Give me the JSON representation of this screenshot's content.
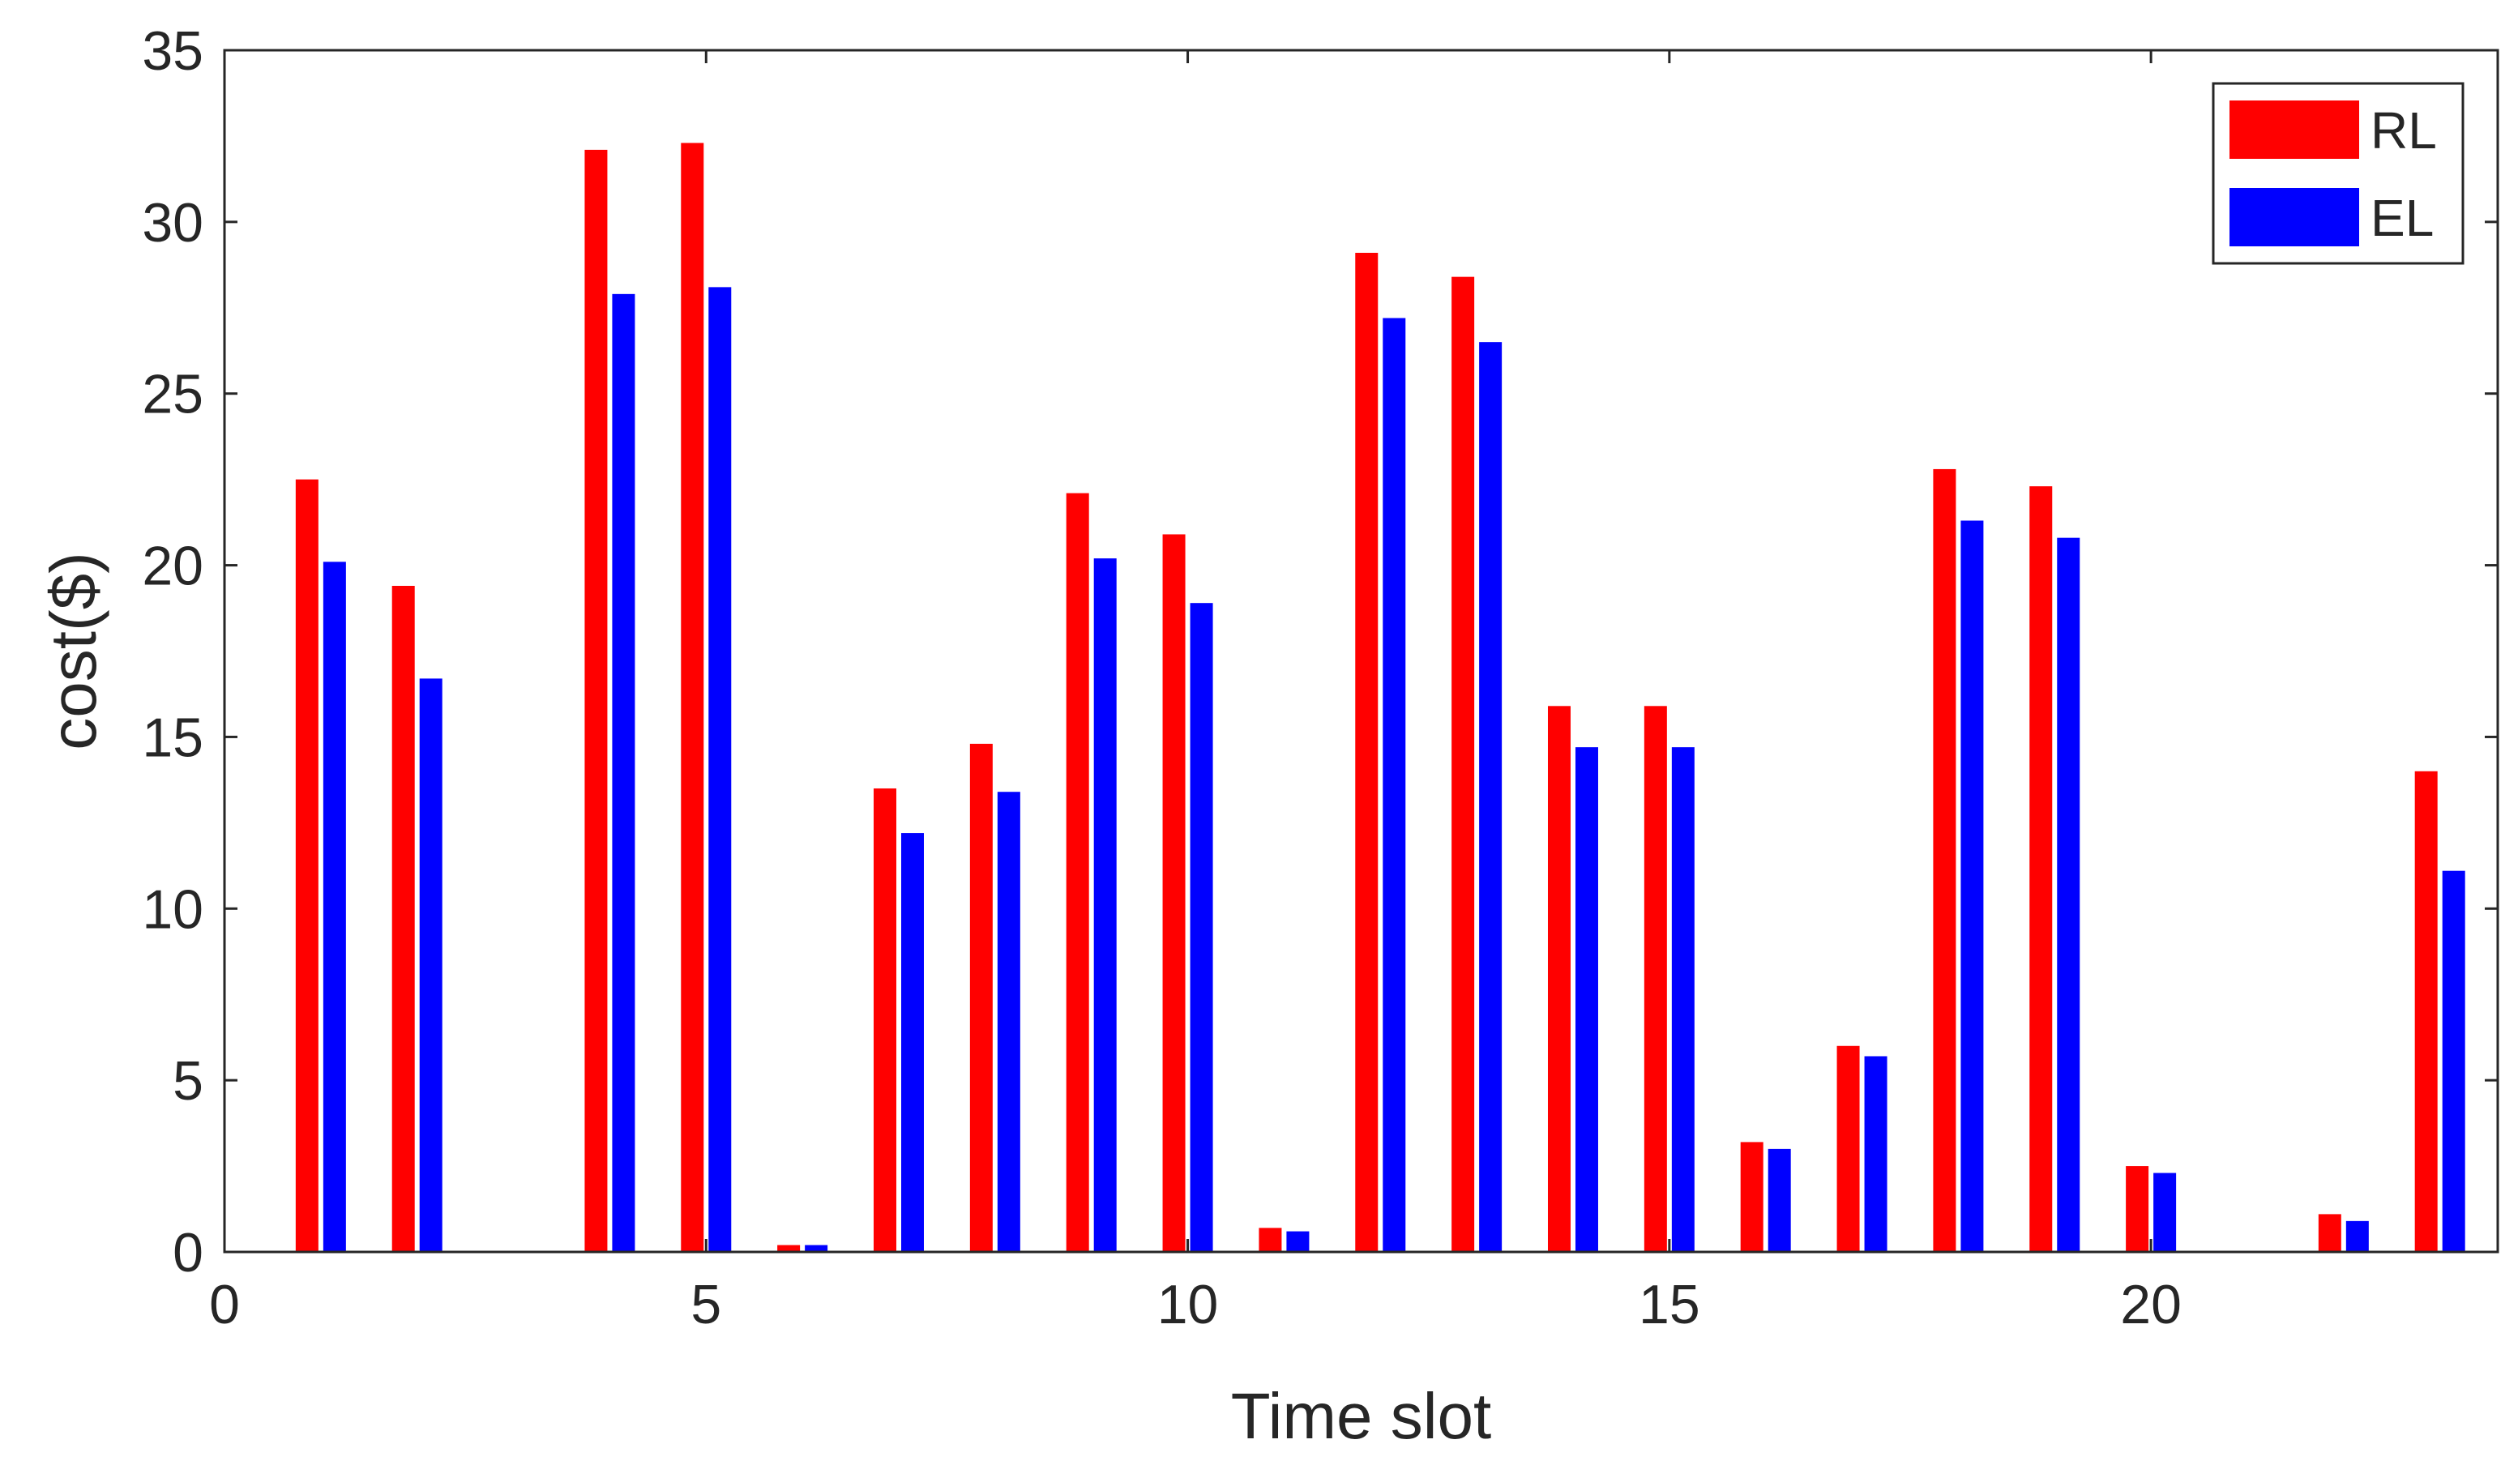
{
  "chart_data": {
    "type": "bar",
    "xlabel": "Time slot",
    "ylabel": "cost($)",
    "xlim": [
      0,
      23.6
    ],
    "ylim": [
      0,
      35
    ],
    "xticks": [
      0,
      5,
      10,
      15,
      20
    ],
    "yticks": [
      0,
      5,
      10,
      15,
      20,
      25,
      30,
      35
    ],
    "grid": false,
    "legend_position": "top-right",
    "x": [
      1,
      2,
      3,
      4,
      5,
      6,
      7,
      8,
      9,
      10,
      11,
      12,
      13,
      14,
      15,
      16,
      17,
      18,
      19,
      20,
      21,
      22,
      23
    ],
    "series": [
      {
        "name": "RL",
        "color": "#ff0000",
        "values": [
          22.5,
          19.4,
          0,
          32.1,
          32.3,
          0.2,
          13.5,
          14.8,
          22.1,
          20.9,
          0.7,
          29.1,
          28.4,
          15.9,
          15.9,
          3.2,
          6.0,
          22.8,
          22.3,
          2.5,
          0,
          1.1,
          14.0
        ]
      },
      {
        "name": "EL",
        "color": "#0000ff",
        "values": [
          20.1,
          16.7,
          0,
          27.9,
          28.1,
          0.2,
          12.2,
          13.4,
          20.2,
          18.9,
          0.6,
          27.2,
          26.5,
          14.7,
          14.7,
          3.0,
          5.7,
          21.3,
          20.8,
          2.3,
          0,
          0.9,
          11.1
        ]
      }
    ]
  }
}
